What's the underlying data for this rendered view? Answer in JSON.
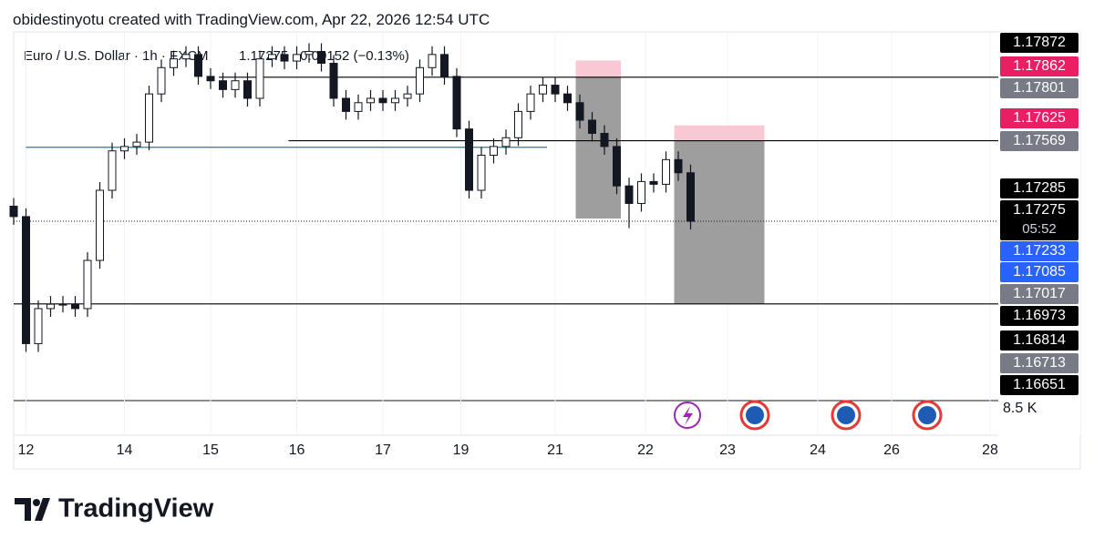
{
  "header": "obidestinyotu created with TradingView.com, Apr 22, 2026 12:54 UTC",
  "footer": {
    "logo": "TradingView"
  },
  "chart_data": {
    "type": "candlestick",
    "title": "Euro / U.S. Dollar · 1h · FXCM",
    "quote": "1.17275 −0.00152 (−0.13%)",
    "color": "#131722",
    "x": [
      0,
      3,
      6,
      9,
      12,
      15,
      18,
      21,
      24,
      27,
      30,
      33,
      36,
      39,
      42,
      45,
      48,
      51,
      54,
      57,
      60,
      63,
      66,
      69,
      72,
      75,
      78,
      81,
      84,
      87,
      90,
      93,
      96,
      99,
      102,
      105,
      108,
      111,
      114,
      117,
      120,
      123,
      126,
      129,
      132,
      135,
      138,
      141,
      144,
      147,
      150,
      153,
      156,
      159,
      162,
      165
    ],
    "open": [
      1.1733,
      1.17292,
      1.16828,
      1.16956,
      1.16972,
      1.16972,
      1.16956,
      1.17132,
      1.17388,
      1.17532,
      1.17548,
      1.17564,
      1.1774,
      1.17836,
      1.17868,
      1.17884,
      1.17804,
      1.17788,
      1.17756,
      1.17788,
      1.17724,
      1.17868,
      1.17884,
      1.1786,
      1.17884,
      1.17895,
      1.17852,
      1.17724,
      1.17676,
      1.17708,
      1.17724,
      1.17708,
      1.17724,
      1.1774,
      1.17836,
      1.17884,
      1.17804,
      1.17612,
      1.17388,
      1.17516,
      1.17548,
      1.1758,
      1.17676,
      1.1774,
      1.17772,
      1.1774,
      1.17708,
      1.17644,
      1.17596,
      1.17548,
      1.17404,
      1.1734,
      1.1742,
      1.1741,
      1.175,
      1.17452
    ],
    "high": [
      1.1736,
      1.17322,
      1.16986,
      1.17002,
      1.17002,
      1.17002,
      1.17162,
      1.17418,
      1.17562,
      1.17578,
      1.17594,
      1.1777,
      1.17866,
      1.17898,
      1.17914,
      1.17914,
      1.17834,
      1.17818,
      1.17818,
      1.17818,
      1.17898,
      1.17914,
      1.17914,
      1.17914,
      1.17925,
      1.17925,
      1.17882,
      1.17754,
      1.17738,
      1.17754,
      1.17754,
      1.17754,
      1.1777,
      1.17866,
      1.17914,
      1.17914,
      1.17834,
      1.17642,
      1.17546,
      1.17578,
      1.1761,
      1.17706,
      1.1777,
      1.17802,
      1.17802,
      1.1777,
      1.17738,
      1.17674,
      1.17626,
      1.17578,
      1.17434,
      1.1745,
      1.1745,
      1.1753,
      1.1753,
      1.17482
    ],
    "low": [
      1.17262,
      1.16798,
      1.16798,
      1.16926,
      1.16942,
      1.16926,
      1.16926,
      1.17102,
      1.17358,
      1.17502,
      1.17518,
      1.17534,
      1.1771,
      1.17806,
      1.17838,
      1.17774,
      1.17758,
      1.17726,
      1.17726,
      1.17694,
      1.17694,
      1.17838,
      1.1783,
      1.1783,
      1.17854,
      1.17822,
      1.17694,
      1.17646,
      1.17646,
      1.17678,
      1.17678,
      1.17678,
      1.17694,
      1.1771,
      1.17806,
      1.17774,
      1.17582,
      1.17358,
      1.17358,
      1.17486,
      1.17518,
      1.1755,
      1.17646,
      1.1771,
      1.1771,
      1.17678,
      1.17614,
      1.17566,
      1.17518,
      1.17374,
      1.1725,
      1.1731,
      1.1738,
      1.1738,
      1.17422,
      1.17245
    ],
    "close": [
      1.17292,
      1.16828,
      1.16956,
      1.16972,
      1.16972,
      1.16956,
      1.17132,
      1.17388,
      1.17532,
      1.17548,
      1.17564,
      1.1774,
      1.17836,
      1.17868,
      1.17884,
      1.17804,
      1.17788,
      1.17756,
      1.17788,
      1.17724,
      1.17868,
      1.17884,
      1.1786,
      1.17884,
      1.17895,
      1.17852,
      1.17724,
      1.17676,
      1.17708,
      1.17724,
      1.17708,
      1.17724,
      1.1774,
      1.17836,
      1.17884,
      1.17804,
      1.17612,
      1.17388,
      1.17516,
      1.17548,
      1.1758,
      1.17676,
      1.1774,
      1.17772,
      1.1774,
      1.17708,
      1.17644,
      1.17596,
      1.17548,
      1.17404,
      1.1734,
      1.1742,
      1.1741,
      1.175,
      1.17452,
      1.17275
    ],
    "xlim": [
      0,
      240
    ],
    "xticks": [
      {
        "value": 3,
        "label": "12"
      },
      {
        "value": 27,
        "label": "14"
      },
      {
        "value": 48,
        "label": "15"
      },
      {
        "value": 69,
        "label": "16"
      },
      {
        "value": 90,
        "label": "17"
      },
      {
        "value": 109,
        "label": "19"
      },
      {
        "value": 132,
        "label": "21"
      },
      {
        "value": 154,
        "label": "22"
      },
      {
        "value": 174,
        "label": "23"
      },
      {
        "value": 196,
        "label": "24"
      },
      {
        "value": 214,
        "label": "26"
      },
      {
        "value": 238,
        "label": "28"
      }
    ],
    "ylim": [
      1.1662,
      1.1795
    ],
    "price_tags": [
      {
        "value": 1.17872,
        "color": "#000000"
      },
      {
        "value": 1.17862,
        "color": "#e91e63"
      },
      {
        "value": 1.17801,
        "color": "#787b86"
      },
      {
        "value": 1.17625,
        "color": "#e91e63"
      },
      {
        "value": 1.17569,
        "color": "#787b86"
      },
      {
        "value": 1.17285,
        "color": "#000000"
      },
      {
        "value": 1.17275,
        "color": "#000000"
      },
      {
        "value": 1.17233,
        "color": "#2962ff"
      },
      {
        "value": 1.17085,
        "color": "#2962ff"
      },
      {
        "value": 1.17017,
        "color": "#787b86"
      },
      {
        "value": 1.16973,
        "color": "#000000"
      },
      {
        "value": 1.16814,
        "color": "#000000"
      },
      {
        "value": 1.16713,
        "color": "#787b86"
      },
      {
        "value": 1.16651,
        "color": "#000000"
      }
    ],
    "countdown": "05:52",
    "volume_label": "8.5 K",
    "lines": [
      {
        "value": 1.17801,
        "from": 50,
        "color": "#000000"
      },
      {
        "value": 1.17569,
        "from": 67,
        "color": "#000000"
      },
      {
        "value": 1.17545,
        "from": 3,
        "to": 130,
        "color": "#0b6e79"
      },
      {
        "value": 1.16973,
        "from": 0,
        "color": "#000000"
      }
    ],
    "drawings": [
      {
        "x": [
          137,
          148
        ],
        "stop": 1.17862,
        "entry": 1.17801,
        "target": 1.17285
      },
      {
        "x": [
          161,
          183
        ],
        "stop": 1.17625,
        "entry": 1.17569,
        "target": 1.16973
      }
    ]
  }
}
